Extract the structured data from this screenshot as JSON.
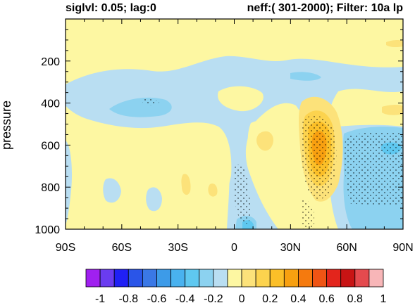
{
  "header": {
    "left": "siglvl: 0.05; lag:0",
    "right": "neff:( 301-2000); Filter: 10a lp"
  },
  "chart_data": {
    "type": "heatmap",
    "title": "",
    "xlabel": "",
    "ylabel": "pressure",
    "xlim": [
      -90,
      90
    ],
    "ylim_pressure": [
      1000,
      0
    ],
    "x_ticks": [
      -90,
      -60,
      -30,
      0,
      30,
      60,
      90
    ],
    "x_tick_labels": [
      "90S",
      "60S",
      "30S",
      "0",
      "30N",
      "60N",
      "90N"
    ],
    "y_ticks": [
      200,
      400,
      600,
      800,
      1000
    ],
    "y_tick_labels": [
      "200",
      "400",
      "600",
      "800",
      "1000"
    ],
    "colorbar": {
      "levels": [
        -1,
        -0.9,
        -0.8,
        -0.7,
        -0.6,
        -0.5,
        -0.4,
        -0.3,
        -0.2,
        -0.1,
        0,
        0.1,
        0.2,
        0.3,
        0.4,
        0.5,
        0.6,
        0.7,
        0.8,
        0.9,
        1
      ],
      "tick_labels": [
        "-1",
        "-0.8",
        "-0.6",
        "-0.4",
        "-0.2",
        "0",
        "0.2",
        "0.4",
        "0.6",
        "0.8",
        "1"
      ],
      "colors": [
        "#a020f0",
        "#6a3cf0",
        "#2020f5",
        "#2a55e8",
        "#3a78e6",
        "#3d9be8",
        "#49b2ef",
        "#5fc8f0",
        "#8cd2f0",
        "#b9def2",
        "#fdf7a2",
        "#fce27a",
        "#fcd34e",
        "#fbbf28",
        "#f8a010",
        "#f57a0e",
        "#ef5414",
        "#e3251c",
        "#c81414",
        "#e44a4e",
        "#f8b6b8"
      ]
    },
    "regions": [
      {
        "name": "upper-positive",
        "value": 0.05,
        "lat": [
          -90,
          90
        ],
        "p": [
          0,
          200
        ]
      },
      {
        "name": "subtropical-negative-band",
        "value": -0.1,
        "lat": [
          -90,
          60
        ],
        "p": [
          200,
          500
        ]
      },
      {
        "name": "southern-positive-column",
        "value": 0.05,
        "lat": [
          -90,
          -5
        ],
        "p": [
          500,
          1000
        ]
      },
      {
        "name": "equatorial-negative",
        "value": -0.1,
        "lat": [
          -5,
          25
        ],
        "p": [
          500,
          1000
        ]
      },
      {
        "name": "nh-midlat-positive-core",
        "value": 0.4,
        "lat": [
          40,
          55
        ],
        "p": [
          500,
          900
        ]
      },
      {
        "name": "nh-midlat-positive-max",
        "value": 0.45,
        "lat": [
          44,
          52
        ],
        "p": [
          560,
          780
        ]
      },
      {
        "name": "arctic-negative",
        "value": -0.15,
        "lat": [
          58,
          90
        ],
        "p": [
          560,
          1000
        ]
      },
      {
        "name": "arctic-negative-min",
        "value": -0.3,
        "lat": [
          80,
          88
        ],
        "p": [
          680,
          760
        ]
      },
      {
        "name": "southern-weak-negative",
        "value": -0.2,
        "lat": [
          -65,
          -45
        ],
        "p": [
          400,
          480
        ]
      },
      {
        "name": "surface-equatorial-minimum",
        "value": -0.3,
        "lat": [
          6,
          12
        ],
        "p": [
          940,
          1000
        ]
      }
    ],
    "significance": {
      "threshold": 0.05,
      "stippled_regions": [
        "nh-midlat-positive-core",
        "arctic-negative",
        "equatorial-negative"
      ]
    }
  }
}
